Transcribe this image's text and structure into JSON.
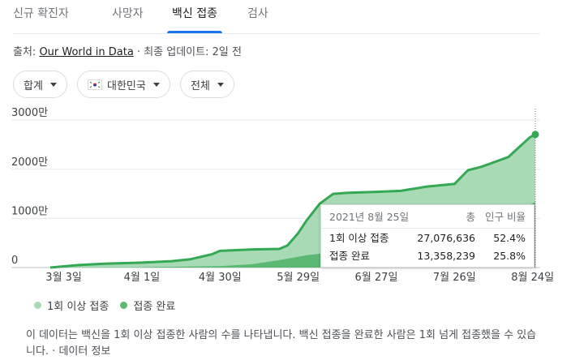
{
  "tabs": [
    {
      "label": "신규 확진자"
    },
    {
      "label": "사망자"
    },
    {
      "label": "백신 접종"
    },
    {
      "label": "검사"
    }
  ],
  "source": {
    "prefix": "출처: ",
    "link": "Our World in Data",
    "suffix": " · 최종 업데이트: 2일 전"
  },
  "filters": {
    "metric": "합계",
    "region": "대한민국",
    "scope": "전체"
  },
  "tooltip": {
    "date": "2021년 8월 25일",
    "col_total": "총",
    "col_ratio": "인구 비율",
    "rows": [
      {
        "label": "1회 이상 접종",
        "total": "27,076,636",
        "ratio": "52.4%"
      },
      {
        "label": "접종 완료",
        "total": "13,358,239",
        "ratio": "25.8%"
      }
    ]
  },
  "legend": {
    "first": "1회 이상 접종",
    "full": "접종 완료"
  },
  "note": {
    "text": "이 데이터는 백신을 1회 이상 접종한 사람의 수를 나타냅니다. 백신 접종을 완료한 사람은 1회 넘게 접종했을 수 있습니다. · 데이터 정보"
  },
  "colors": {
    "first_fill": "#a8dab5",
    "first_line": "#34a853",
    "full_fill": "#5bb974",
    "accent": "#1a73e8"
  },
  "chart_data": {
    "type": "area",
    "y_tick_labels": [
      "0",
      "1000만",
      "2000만",
      "3000만"
    ],
    "y_ticks": [
      0,
      10000000,
      20000000,
      30000000
    ],
    "ylim": [
      0,
      32000000
    ],
    "x_tick_labels": [
      "3월 3일",
      "4월 1일",
      "4월 30일",
      "5월 29일",
      "6월 27일",
      "7월 26일",
      "8월 24일"
    ],
    "x_tick_days": [
      5,
      34,
      63,
      92,
      121,
      150,
      179
    ],
    "xlim": [
      0,
      180
    ],
    "series": [
      {
        "name": "1회 이상 접종",
        "x": [
          0,
          10,
          20,
          34,
          45,
          52,
          60,
          63,
          75,
          85,
          88,
          92,
          95,
          100,
          105,
          110,
          115,
          121,
          130,
          140,
          150,
          155,
          160,
          165,
          170,
          175,
          178,
          180
        ],
        "y": [
          0,
          500000,
          800000,
          1000000,
          1300000,
          1700000,
          2700000,
          3400000,
          3700000,
          3800000,
          4500000,
          7000000,
          9500000,
          13000000,
          15000000,
          15200000,
          15300000,
          15400000,
          15600000,
          16500000,
          17000000,
          19800000,
          20500000,
          21500000,
          22500000,
          25000000,
          26500000,
          27076636
        ]
      },
      {
        "name": "접종 완료",
        "x": [
          0,
          30,
          63,
          75,
          85,
          92,
          95,
          100,
          110,
          121,
          130,
          140,
          150,
          155,
          160,
          165,
          170,
          175,
          178,
          180
        ],
        "y": [
          0,
          50000,
          300000,
          700000,
          1500000,
          2200000,
          2500000,
          2800000,
          3700000,
          4500000,
          5000000,
          6000000,
          7500000,
          8000000,
          9000000,
          10000000,
          11000000,
          12000000,
          12800000,
          13358239
        ]
      }
    ]
  }
}
